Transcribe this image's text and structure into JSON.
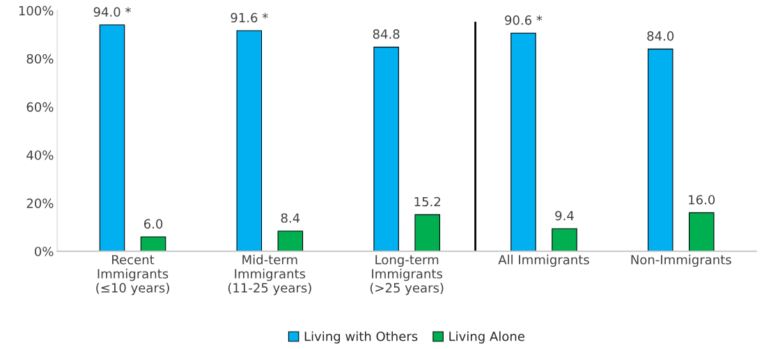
{
  "chart_data": {
    "type": "bar",
    "categories": [
      "Recent\nImmigrants\n(≤10 years)",
      "Mid-term\nImmigrants\n(11-25 years)",
      "Long-term\nImmigrants\n(>25 years)",
      "All Immigrants",
      "Non-Immigrants"
    ],
    "series": [
      {
        "name": "Living with Others",
        "color": "#00b0f0",
        "values": [
          94.0,
          91.6,
          84.8,
          90.6,
          84.0
        ],
        "value_labels": [
          "94.0 *",
          "91.6 *",
          "84.8",
          "90.6 *",
          "84.0"
        ]
      },
      {
        "name": "Living Alone",
        "color": "#00b050",
        "values": [
          6.0,
          8.4,
          15.2,
          9.4,
          16.0
        ],
        "value_labels": [
          "6.0",
          "8.4",
          "15.2",
          "9.4",
          "16.0"
        ]
      }
    ],
    "ylim": [
      0,
      100
    ],
    "yticks": [
      {
        "value": 0,
        "label": "0%"
      },
      {
        "value": 20,
        "label": "20%"
      },
      {
        "value": 40,
        "label": "40%"
      },
      {
        "value": 60,
        "label": "60%"
      },
      {
        "value": 80,
        "label": "80%"
      },
      {
        "value": 100,
        "label": "100%"
      }
    ],
    "legend": "bottom",
    "grid": false
  }
}
